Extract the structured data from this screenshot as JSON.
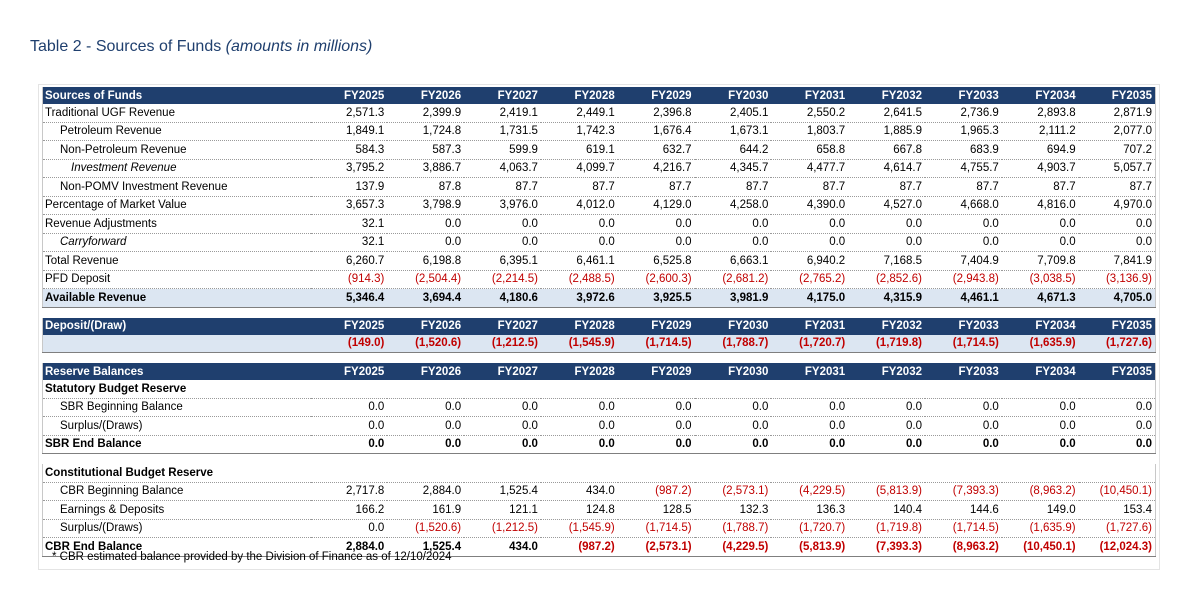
{
  "title": "Table 2 - Sources of Funds",
  "subtitle": "(amounts in millions)",
  "sections": [
    {
      "header": [
        "Sources of Funds",
        "FY2025",
        "FY2026",
        "FY2027",
        "FY2028",
        "FY2029",
        "FY2030",
        "FY2031",
        "FY2032",
        "FY2033",
        "FY2034",
        "FY2035"
      ],
      "rows": [
        {
          "label": "Traditional UGF Revenue",
          "cells": [
            "2,571.3",
            "2,399.9",
            "2,419.1",
            "2,449.1",
            "2,396.8",
            "2,405.1",
            "2,550.2",
            "2,641.5",
            "2,736.9",
            "2,893.8",
            "2,871.9"
          ]
        },
        {
          "label": "Petroleum Revenue",
          "cells": [
            "1,849.1",
            "1,724.8",
            "1,731.5",
            "1,742.3",
            "1,676.4",
            "1,673.1",
            "1,803.7",
            "1,885.9",
            "1,965.3",
            "2,111.2",
            "2,077.0"
          ]
        },
        {
          "label": "Non-Petroleum Revenue",
          "cells": [
            "584.3",
            "587.3",
            "599.9",
            "619.1",
            "632.7",
            "644.2",
            "658.8",
            "667.8",
            "683.9",
            "694.9",
            "707.2"
          ]
        },
        {
          "label": "Investment Revenue",
          "cells": [
            "3,795.2",
            "3,886.7",
            "4,063.7",
            "4,099.7",
            "4,216.7",
            "4,345.7",
            "4,477.7",
            "4,614.7",
            "4,755.7",
            "4,903.7",
            "5,057.7"
          ]
        },
        {
          "label": "Non-POMV Investment Revenue",
          "cells": [
            "137.9",
            "87.8",
            "87.7",
            "87.7",
            "87.7",
            "87.7",
            "87.7",
            "87.7",
            "87.7",
            "87.7",
            "87.7"
          ]
        },
        {
          "label": "Percentage of Market Value",
          "cells": [
            "3,657.3",
            "3,798.9",
            "3,976.0",
            "4,012.0",
            "4,129.0",
            "4,258.0",
            "4,390.0",
            "4,527.0",
            "4,668.0",
            "4,816.0",
            "4,970.0"
          ]
        },
        {
          "label": "Revenue Adjustments",
          "cells": [
            "32.1",
            "0.0",
            "0.0",
            "0.0",
            "0.0",
            "0.0",
            "0.0",
            "0.0",
            "0.0",
            "0.0",
            "0.0"
          ]
        },
        {
          "label": "Carryforward",
          "cells": [
            "32.1",
            "0.0",
            "0.0",
            "0.0",
            "0.0",
            "0.0",
            "0.0",
            "0.0",
            "0.0",
            "0.0",
            "0.0"
          ]
        },
        {
          "label": "Total Revenue",
          "cells": [
            "6,260.7",
            "6,198.8",
            "6,395.1",
            "6,461.1",
            "6,525.8",
            "6,663.1",
            "6,940.2",
            "7,168.5",
            "7,404.9",
            "7,709.8",
            "7,841.9"
          ]
        },
        {
          "label": "PFD Deposit",
          "cells": [
            "(914.3)",
            "(2,504.4)",
            "(2,214.5)",
            "(2,488.5)",
            "(2,600.3)",
            "(2,681.2)",
            "(2,765.2)",
            "(2,852.6)",
            "(2,943.8)",
            "(3,038.5)",
            "(3,136.9)"
          ]
        },
        {
          "label": "Available Revenue",
          "cells": [
            "5,346.4",
            "3,694.4",
            "4,180.6",
            "3,972.6",
            "3,925.5",
            "3,981.9",
            "4,175.0",
            "4,315.9",
            "4,461.1",
            "4,671.3",
            "4,705.0"
          ]
        }
      ]
    },
    {
      "header": [
        "Deposit/(Draw)",
        "FY2025",
        "FY2026",
        "FY2027",
        "FY2028",
        "FY2029",
        "FY2030",
        "FY2031",
        "FY2032",
        "FY2033",
        "FY2034",
        "FY2035"
      ],
      "rows": [
        {
          "cells": [
            "(149.0)",
            "(1,520.6)",
            "(1,212.5)",
            "(1,545.9)",
            "(1,714.5)",
            "(1,788.7)",
            "(1,720.7)",
            "(1,719.8)",
            "(1,714.5)",
            "(1,635.9)",
            "(1,727.6)"
          ]
        }
      ]
    },
    {
      "header": [
        "Reserve Balances",
        "FY2025",
        "FY2026",
        "FY2027",
        "FY2028",
        "FY2029",
        "FY2030",
        "FY2031",
        "FY2032",
        "FY2033",
        "FY2034",
        "FY2035"
      ],
      "rows": [
        {
          "label": "Statutory Budget Reserve"
        },
        {
          "label": "SBR Beginning Balance",
          "cells": [
            "0.0",
            "0.0",
            "0.0",
            "0.0",
            "0.0",
            "0.0",
            "0.0",
            "0.0",
            "0.0",
            "0.0",
            "0.0"
          ]
        },
        {
          "label": "Surplus/(Draws)",
          "cells": [
            "0.0",
            "0.0",
            "0.0",
            "0.0",
            "0.0",
            "0.0",
            "0.0",
            "0.0",
            "0.0",
            "0.0",
            "0.0"
          ]
        },
        {
          "label": "SBR End Balance",
          "cells": [
            "0.0",
            "0.0",
            "0.0",
            "0.0",
            "0.0",
            "0.0",
            "0.0",
            "0.0",
            "0.0",
            "0.0",
            "0.0"
          ]
        }
      ]
    },
    {
      "rows": [
        {
          "label": "Constitutional Budget Reserve"
        },
        {
          "label": "CBR Beginning Balance",
          "cells": [
            "2,717.8",
            "2,884.0",
            "1,525.4",
            "434.0",
            "(987.2)",
            "(2,573.1)",
            "(4,229.5)",
            "(5,813.9)",
            "(7,393.3)",
            "(8,963.2)",
            "(10,450.1)"
          ]
        },
        {
          "label": "Earnings & Deposits",
          "cells": [
            "166.2",
            "161.9",
            "121.1",
            "124.8",
            "128.5",
            "132.3",
            "136.3",
            "140.4",
            "144.6",
            "149.0",
            "153.4"
          ]
        },
        {
          "label": "Surplus/(Draws)",
          "cells": [
            "0.0",
            "(1,520.6)",
            "(1,212.5)",
            "(1,545.9)",
            "(1,714.5)",
            "(1,788.7)",
            "(1,720.7)",
            "(1,719.8)",
            "(1,714.5)",
            "(1,635.9)",
            "(1,727.6)"
          ]
        },
        {
          "label": "CBR End Balance",
          "cells": [
            "2,884.0",
            "1,525.4",
            "434.0",
            "(987.2)",
            "(2,573.1)",
            "(4,229.5)",
            "(5,813.9)",
            "(7,393.3)",
            "(8,963.2)",
            "(10,450.1)",
            "(12,024.3)"
          ]
        }
      ]
    }
  ],
  "footnote": "* CBR estimated balance provided by the Division of Finance as of 12/10/2024"
}
